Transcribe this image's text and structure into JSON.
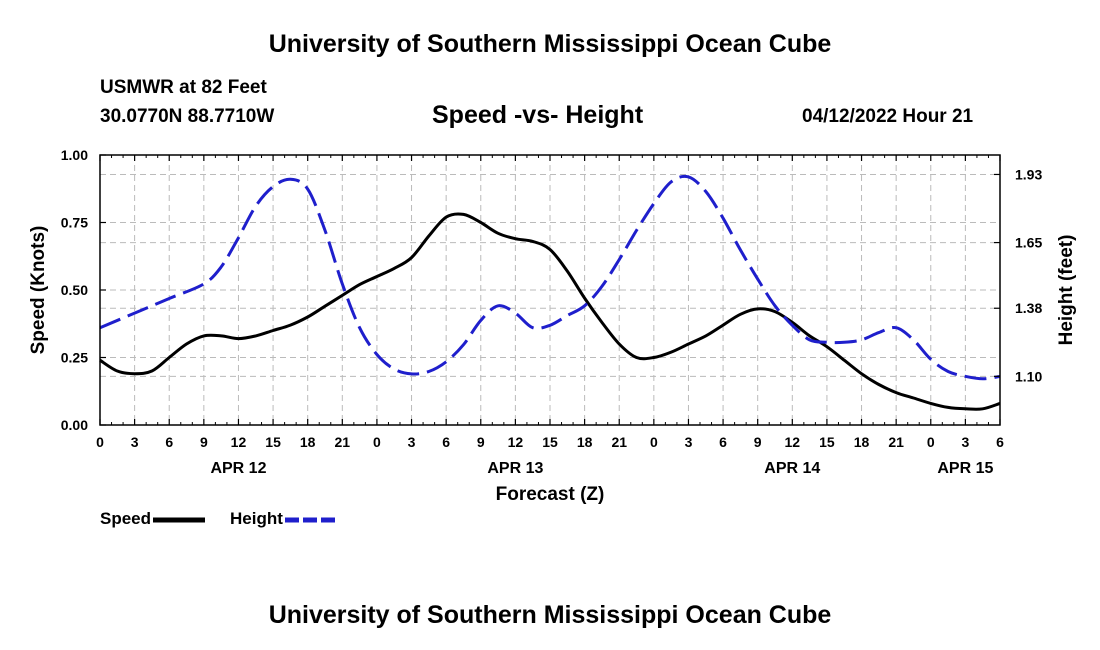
{
  "header": {
    "title": "University of Southern Mississippi Ocean Cube",
    "station": "USMWR at 82 Feet",
    "coords": "30.0770N  88.7710W",
    "subtitle": "Speed -vs- Height",
    "datetime": "04/12/2022 Hour 21",
    "footer_title": "University of Southern Mississippi Ocean Cube"
  },
  "legend": {
    "speed_label": "Speed",
    "height_label": "Height"
  },
  "colors": {
    "speed": "#000000",
    "height": "#1f1fcc",
    "grid": "#bbbbbb"
  },
  "chart_data": {
    "type": "line",
    "title": "Speed -vs- Height",
    "xlabel": "Forecast (Z)",
    "ylabel": "Speed (Knots)",
    "y2label": "Height (feet)",
    "xlim": [
      0,
      78
    ],
    "ylim": [
      0,
      1.0
    ],
    "y2lim": [
      0.9,
      2.01
    ],
    "x_ticks": [
      0,
      3,
      6,
      9,
      12,
      15,
      18,
      21,
      24,
      27,
      30,
      33,
      36,
      39,
      42,
      45,
      48,
      51,
      54,
      57,
      60,
      63,
      66,
      69,
      72,
      75,
      78
    ],
    "x_tick_labels": [
      "0",
      "3",
      "6",
      "9",
      "12",
      "15",
      "18",
      "21",
      "0",
      "3",
      "6",
      "9",
      "12",
      "15",
      "18",
      "21",
      "0",
      "3",
      "6",
      "9",
      "12",
      "15",
      "18",
      "21",
      "0",
      "3",
      "6"
    ],
    "y_ticks": [
      0,
      0.25,
      0.5,
      0.75,
      1.0
    ],
    "y_tick_labels": [
      "0.00",
      "0.25",
      "0.50",
      "0.75",
      "1.00"
    ],
    "y2_ticks": [
      1.1,
      1.38,
      1.65,
      1.93
    ],
    "y2_tick_labels": [
      "1.10",
      "1.38",
      "1.65",
      "1.93"
    ],
    "day_labels": [
      {
        "x": 12,
        "label": "APR 12"
      },
      {
        "x": 36,
        "label": "APR 13"
      },
      {
        "x": 60,
        "label": "APR 14"
      },
      {
        "x": 75,
        "label": "APR 15"
      }
    ],
    "grid": true,
    "series": [
      {
        "name": "Speed",
        "axis": "left",
        "style": "solid",
        "x": [
          0,
          1.5,
          3,
          4.5,
          6,
          7.5,
          9,
          10.5,
          12,
          13.5,
          15,
          16.5,
          18,
          19.5,
          21,
          22.5,
          24,
          25.5,
          27,
          28.5,
          30,
          31.5,
          33,
          34.5,
          36,
          37.5,
          39,
          40.5,
          42,
          43.5,
          45,
          46.5,
          48,
          49.5,
          51,
          52.5,
          54,
          55.5,
          57,
          58.5,
          60,
          61.5,
          63,
          64.5,
          66,
          67.5,
          69,
          70.5,
          72,
          73.5,
          75,
          76.5,
          78
        ],
        "values": [
          0.24,
          0.2,
          0.19,
          0.2,
          0.25,
          0.3,
          0.33,
          0.33,
          0.32,
          0.33,
          0.35,
          0.37,
          0.4,
          0.44,
          0.48,
          0.52,
          0.55,
          0.58,
          0.62,
          0.7,
          0.77,
          0.78,
          0.75,
          0.71,
          0.69,
          0.68,
          0.65,
          0.57,
          0.47,
          0.38,
          0.3,
          0.25,
          0.25,
          0.27,
          0.3,
          0.33,
          0.37,
          0.41,
          0.43,
          0.42,
          0.38,
          0.33,
          0.29,
          0.24,
          0.19,
          0.15,
          0.12,
          0.1,
          0.08,
          0.065,
          0.06,
          0.06,
          0.08
        ]
      },
      {
        "name": "Height",
        "axis": "right",
        "style": "dashed",
        "x": [
          0,
          3,
          6,
          9,
          10.5,
          12,
          13.5,
          15,
          16.5,
          18,
          19.5,
          21,
          22.5,
          24,
          25.5,
          27,
          28.5,
          30,
          31.5,
          33,
          34.5,
          36,
          37.5,
          39,
          40.5,
          42,
          43.5,
          45,
          46.5,
          48,
          49.5,
          51,
          52.5,
          54,
          55.5,
          57,
          58.5,
          60,
          61.5,
          63,
          64.5,
          66,
          67.5,
          69,
          70.5,
          72,
          73.5,
          75,
          76.5,
          78
        ],
        "values": [
          1.3,
          1.36,
          1.42,
          1.48,
          1.55,
          1.67,
          1.8,
          1.88,
          1.91,
          1.87,
          1.7,
          1.48,
          1.3,
          1.19,
          1.13,
          1.11,
          1.12,
          1.16,
          1.23,
          1.33,
          1.39,
          1.36,
          1.3,
          1.31,
          1.35,
          1.39,
          1.47,
          1.58,
          1.7,
          1.81,
          1.9,
          1.92,
          1.86,
          1.75,
          1.62,
          1.5,
          1.39,
          1.31,
          1.25,
          1.24,
          1.24,
          1.25,
          1.28,
          1.3,
          1.25,
          1.17,
          1.12,
          1.1,
          1.09,
          1.1
        ]
      }
    ]
  }
}
